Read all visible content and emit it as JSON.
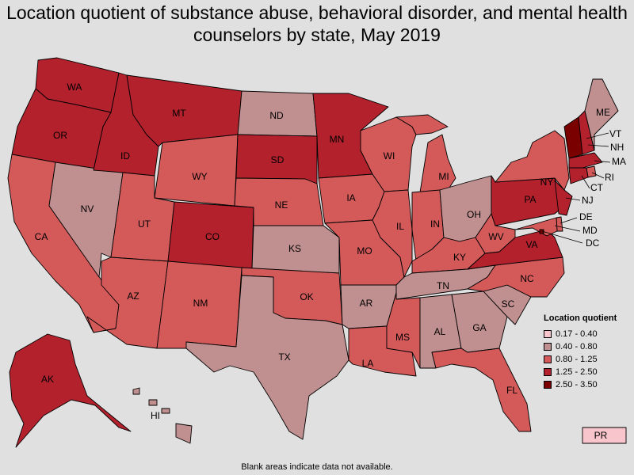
{
  "title": "Location quotient of substance abuse, behavioral disorder, and mental health counselors by state, May 2019",
  "footnote": "Blank areas indicate data not available.",
  "legend": {
    "title": "Location quotient",
    "items": [
      {
        "label": "0.17 - 0.40",
        "color": "#f7c5cb"
      },
      {
        "label": "0.40 - 0.80",
        "color": "#c09090"
      },
      {
        "label": "0.80 - 1.25",
        "color": "#d45a5a"
      },
      {
        "label": "1.25 - 2.50",
        "color": "#b3212c"
      },
      {
        "label": "2.50 - 3.50",
        "color": "#7a0000"
      }
    ]
  },
  "states": [
    {
      "abbr": "WA",
      "class": 3
    },
    {
      "abbr": "OR",
      "class": 3
    },
    {
      "abbr": "CA",
      "class": 2
    },
    {
      "abbr": "NV",
      "class": 1
    },
    {
      "abbr": "ID",
      "class": 3
    },
    {
      "abbr": "MT",
      "class": 3
    },
    {
      "abbr": "WY",
      "class": 2
    },
    {
      "abbr": "UT",
      "class": 2
    },
    {
      "abbr": "AZ",
      "class": 2
    },
    {
      "abbr": "CO",
      "class": 3
    },
    {
      "abbr": "NM",
      "class": 2
    },
    {
      "abbr": "ND",
      "class": 1
    },
    {
      "abbr": "SD",
      "class": 3
    },
    {
      "abbr": "NE",
      "class": 2
    },
    {
      "abbr": "KS",
      "class": 1
    },
    {
      "abbr": "OK",
      "class": 2
    },
    {
      "abbr": "TX",
      "class": 1
    },
    {
      "abbr": "MN",
      "class": 3
    },
    {
      "abbr": "IA",
      "class": 2
    },
    {
      "abbr": "MO",
      "class": 2
    },
    {
      "abbr": "AR",
      "class": 1
    },
    {
      "abbr": "LA",
      "class": 2
    },
    {
      "abbr": "WI",
      "class": 2
    },
    {
      "abbr": "IL",
      "class": 2
    },
    {
      "abbr": "MI",
      "class": 2
    },
    {
      "abbr": "IN",
      "class": 2
    },
    {
      "abbr": "OH",
      "class": 1
    },
    {
      "abbr": "KY",
      "class": 2
    },
    {
      "abbr": "TN",
      "class": 1
    },
    {
      "abbr": "MS",
      "class": 2
    },
    {
      "abbr": "AL",
      "class": 1
    },
    {
      "abbr": "GA",
      "class": 1
    },
    {
      "abbr": "FL",
      "class": 2
    },
    {
      "abbr": "SC",
      "class": 1
    },
    {
      "abbr": "NC",
      "class": 2
    },
    {
      "abbr": "VA",
      "class": 3
    },
    {
      "abbr": "WV",
      "class": 2
    },
    {
      "abbr": "PA",
      "class": 3
    },
    {
      "abbr": "NY",
      "class": 2
    },
    {
      "abbr": "VT",
      "class": 4
    },
    {
      "abbr": "NH",
      "class": 3
    },
    {
      "abbr": "ME",
      "class": 1
    },
    {
      "abbr": "MA",
      "class": 3
    },
    {
      "abbr": "RI",
      "class": 2
    },
    {
      "abbr": "CT",
      "class": 3
    },
    {
      "abbr": "NJ",
      "class": 3
    },
    {
      "abbr": "DE",
      "class": 2
    },
    {
      "abbr": "MD",
      "class": 2
    },
    {
      "abbr": "DC",
      "class": 4
    },
    {
      "abbr": "AK",
      "class": 3
    },
    {
      "abbr": "HI",
      "class": 1
    },
    {
      "abbr": "PR",
      "class": 0
    }
  ]
}
